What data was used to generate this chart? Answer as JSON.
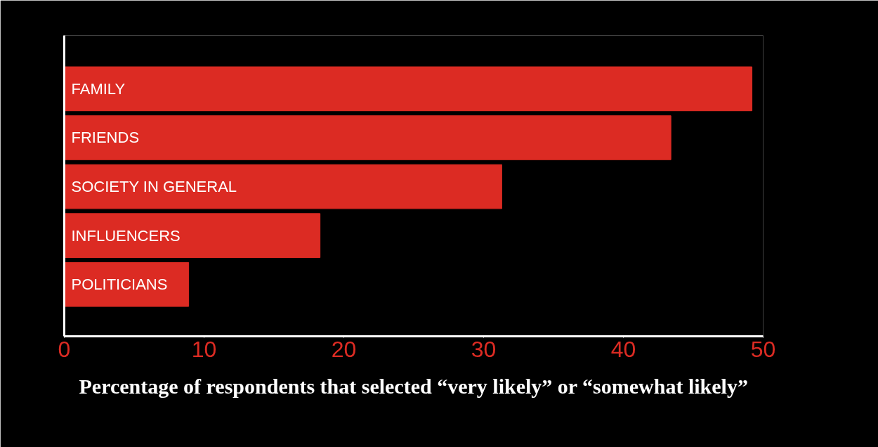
{
  "chart_data": {
    "type": "bar",
    "orientation": "horizontal",
    "categories": [
      "FAMILY",
      "FRIENDS",
      "SOCIETY IN GENERAL",
      "INFLUENCERS",
      "POLITICIANS"
    ],
    "values": [
      49.2,
      43.4,
      31.3,
      18.3,
      8.9
    ],
    "color": "#dc2b23",
    "xlabel": "Percentage of respondents that selected “very likely” or “somewhat likely”",
    "xlim": [
      0,
      50
    ],
    "xticks": [
      0,
      10,
      20,
      30,
      40,
      50
    ],
    "tick_labels": "x",
    "grid": false
  }
}
